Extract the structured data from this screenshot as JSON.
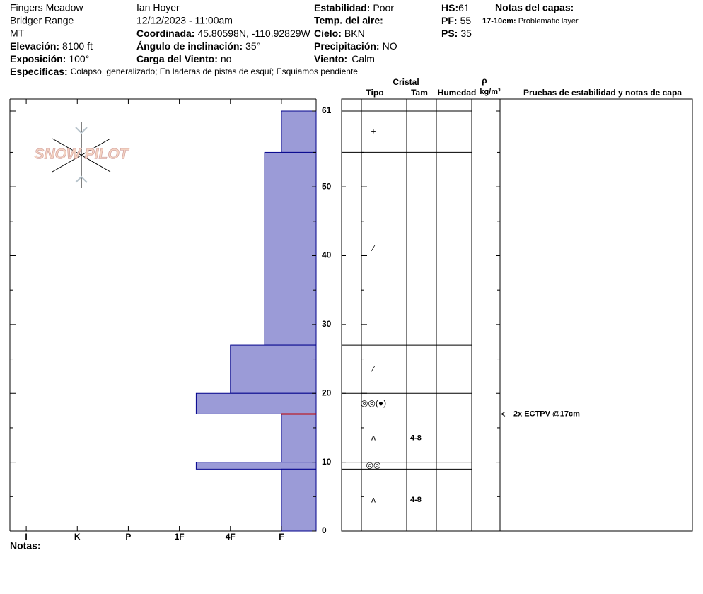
{
  "header": {
    "location": "Fingers Meadow",
    "range": "Bridger Range",
    "state": "MT",
    "elevation": {
      "label": "Elevación:",
      "value": "8100 ft"
    },
    "aspect": {
      "label": "Exposición:",
      "value": "100°"
    },
    "specifics": {
      "label": "Especificas:",
      "value": "Colapso, generalizado; En laderas de pistas de esquí; Esquiamos pendiente"
    },
    "observer": "Ian Hoyer",
    "datetime": "12/12/2023 - 11:00am",
    "coordinates": {
      "label": "Coordinada:",
      "value": "45.80598N, -110.92829W"
    },
    "slope": {
      "label": "Ángulo de inclinación:",
      "value": "35°"
    },
    "wind_loading": {
      "label": "Carga del Viento:",
      "value": "no"
    },
    "stability": {
      "label": "Estabilidad:",
      "value": "Poor"
    },
    "air_temp": {
      "label": "Temp. del aire:"
    },
    "sky": {
      "label": "Cielo:",
      "value": "BKN"
    },
    "precip": {
      "label": "Precipitación:",
      "value": "NO"
    },
    "wind": {
      "label": "Viento:",
      "value": "Calm"
    },
    "hs": {
      "label": "HS:",
      "value": "61"
    },
    "pf": {
      "label": "PF:",
      "value": "55"
    },
    "ps": {
      "label": "PS:",
      "value": "35"
    },
    "layer_notes": {
      "label": "Notas del capas:",
      "items": [
        {
          "range": "17-10cm:",
          "text": "Problematic layer"
        }
      ]
    },
    "logo": "SNOW PILOT",
    "notes": "Notas:"
  },
  "chart_data": {
    "type": "snow-profile",
    "ylim": [
      0,
      61
    ],
    "yticks": [
      0,
      10,
      20,
      30,
      40,
      50,
      61
    ],
    "minor_yticks": [
      5,
      15,
      25,
      35,
      45,
      55
    ],
    "xlim": [
      6.32,
      0.32
    ],
    "xticks": [
      {
        "value": 6,
        "label": "I"
      },
      {
        "value": 5,
        "label": "K"
      },
      {
        "value": 4,
        "label": "P"
      },
      {
        "value": 3,
        "label": "1F"
      },
      {
        "value": 2,
        "label": "4F"
      },
      {
        "value": 1,
        "label": "F"
      }
    ],
    "color": "#9b9bd7",
    "table_headers": {
      "crystal": "Cristal",
      "type": "Tipo",
      "size": "Tam",
      "moisture": "Humedad",
      "rho": "ρ",
      "density_unit": "kg/m³",
      "tests": "Pruebas de estabilidad y notas de capa"
    },
    "layers": [
      {
        "top": 61,
        "bottom": 55,
        "hardness": 1,
        "grain": "+"
      },
      {
        "top": 55,
        "bottom": 27,
        "hardness": 1.33,
        "grain": "⁄"
      },
      {
        "top": 27,
        "bottom": 20,
        "hardness": 2,
        "grain": "⁄"
      },
      {
        "top": 20,
        "bottom": 17,
        "hardness": 2.67,
        "grain": "◎◎(●)"
      },
      {
        "top": 17,
        "bottom": 10,
        "hardness": 1,
        "grain": "ʌ",
        "size": "4-8"
      },
      {
        "top": 10,
        "bottom": 9,
        "hardness": 2.67,
        "grain": "◎◎"
      },
      {
        "top": 9,
        "bottom": 0,
        "hardness": 1,
        "grain": "ʌ",
        "size": "4-8"
      }
    ],
    "tests": [
      {
        "label": "2x ECTPV @17cm",
        "depth": 17,
        "color": "#c00000"
      }
    ]
  }
}
